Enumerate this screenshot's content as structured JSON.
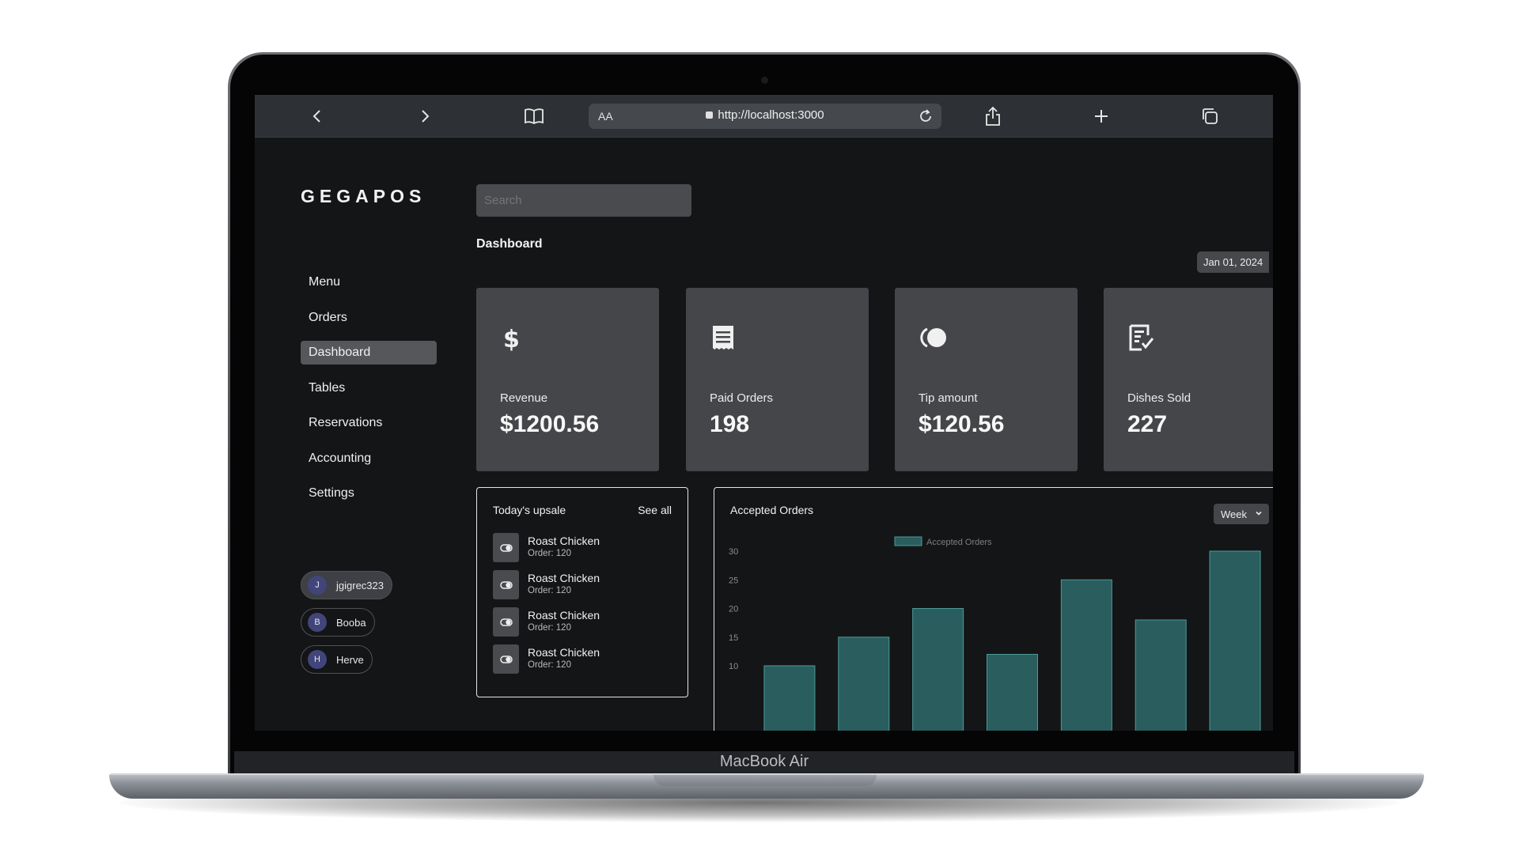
{
  "device": {
    "brand_label": "MacBook Air"
  },
  "browser": {
    "address_prefix": "AA",
    "url": "http://localhost:3000",
    "icons": [
      "back-icon",
      "forward-icon",
      "bookmarks-icon",
      "reload-icon",
      "share-icon",
      "new-tab-icon",
      "tabs-icon"
    ]
  },
  "app": {
    "logo": "GEGAPOS"
  },
  "sidebar": {
    "items": [
      {
        "label": "Menu"
      },
      {
        "label": "Orders"
      },
      {
        "label": "Dashboard",
        "active": true
      },
      {
        "label": "Tables"
      },
      {
        "label": "Reservations"
      },
      {
        "label": "Accounting"
      },
      {
        "label": "Settings"
      }
    ],
    "users": [
      {
        "initial": "J",
        "name": "jgigrec323",
        "active": true
      },
      {
        "initial": "B",
        "name": "Booba"
      },
      {
        "initial": "H",
        "name": "Herve"
      }
    ]
  },
  "search": {
    "placeholder": "Search"
  },
  "page": {
    "title": "Dashboard",
    "date": "Jan 01, 2024"
  },
  "stats": [
    {
      "label": "Revenue",
      "value": "$1200.56",
      "icon": "dollar-icon"
    },
    {
      "label": "Paid Orders",
      "value": "198",
      "icon": "receipt-icon"
    },
    {
      "label": "Tip amount",
      "value": "$120.56",
      "icon": "coins-icon"
    },
    {
      "label": "Dishes Sold",
      "value": "227",
      "icon": "checklist-icon"
    }
  ],
  "upsale": {
    "title": "Today's upsale",
    "see_all": "See all",
    "items": [
      {
        "name": "Roast Chicken",
        "sub": "Order: 120"
      },
      {
        "name": "Roast Chicken",
        "sub": "Order: 120"
      },
      {
        "name": "Roast Chicken",
        "sub": "Order: 120"
      },
      {
        "name": "Roast Chicken",
        "sub": "Order: 120"
      }
    ]
  },
  "orders_panel": {
    "title": "Accepted Orders",
    "range": "Week"
  },
  "colors": {
    "bar": "#2a5d5e",
    "bar_stroke": "#4c9a98",
    "panel_bg": "#141517",
    "card_bg": "#45464a"
  },
  "chart_data": {
    "type": "bar",
    "legend": "Accepted Orders",
    "legend_position": "top",
    "series": [
      {
        "name": "Accepted Orders",
        "values": [
          10,
          15,
          20,
          12,
          25,
          18,
          30
        ]
      }
    ],
    "yticks": [
      10,
      15,
      20,
      25,
      30
    ],
    "ylim": [
      5,
      30
    ],
    "grid": false
  }
}
